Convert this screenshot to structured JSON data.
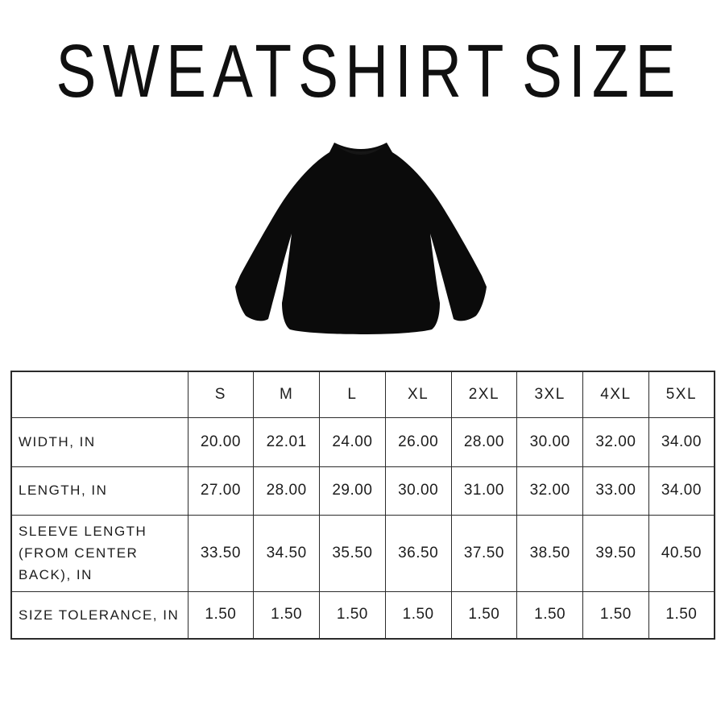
{
  "title": "SWEATSHIRT SIZE",
  "hero": {
    "image_name": "sweatshirt-back-view",
    "garment_color": "#0b0b0b"
  },
  "size_table": {
    "corner_label": "",
    "columns": [
      "S",
      "M",
      "L",
      "XL",
      "2XL",
      "3XL",
      "4XL",
      "5XL"
    ],
    "rows": [
      {
        "label": "WIDTH, IN",
        "values": [
          "20.00",
          "22.01",
          "24.00",
          "26.00",
          "28.00",
          "30.00",
          "32.00",
          "34.00"
        ]
      },
      {
        "label": "LENGTH, IN",
        "values": [
          "27.00",
          "28.00",
          "29.00",
          "30.00",
          "31.00",
          "32.00",
          "33.00",
          "34.00"
        ]
      },
      {
        "label": "SLEEVE LENGTH (FROM CENTER BACK), IN",
        "values": [
          "33.50",
          "34.50",
          "35.50",
          "36.50",
          "37.50",
          "38.50",
          "39.50",
          "40.50"
        ]
      },
      {
        "label": "SIZE TOLERANCE, IN",
        "values": [
          "1.50",
          "1.50",
          "1.50",
          "1.50",
          "1.50",
          "1.50",
          "1.50",
          "1.50"
        ]
      }
    ]
  },
  "colors": {
    "background": "#ffffff",
    "title_text": "#101010",
    "table_text": "#1d1d1d",
    "table_border": "#2b2b2b",
    "garment": "#0b0b0b"
  }
}
